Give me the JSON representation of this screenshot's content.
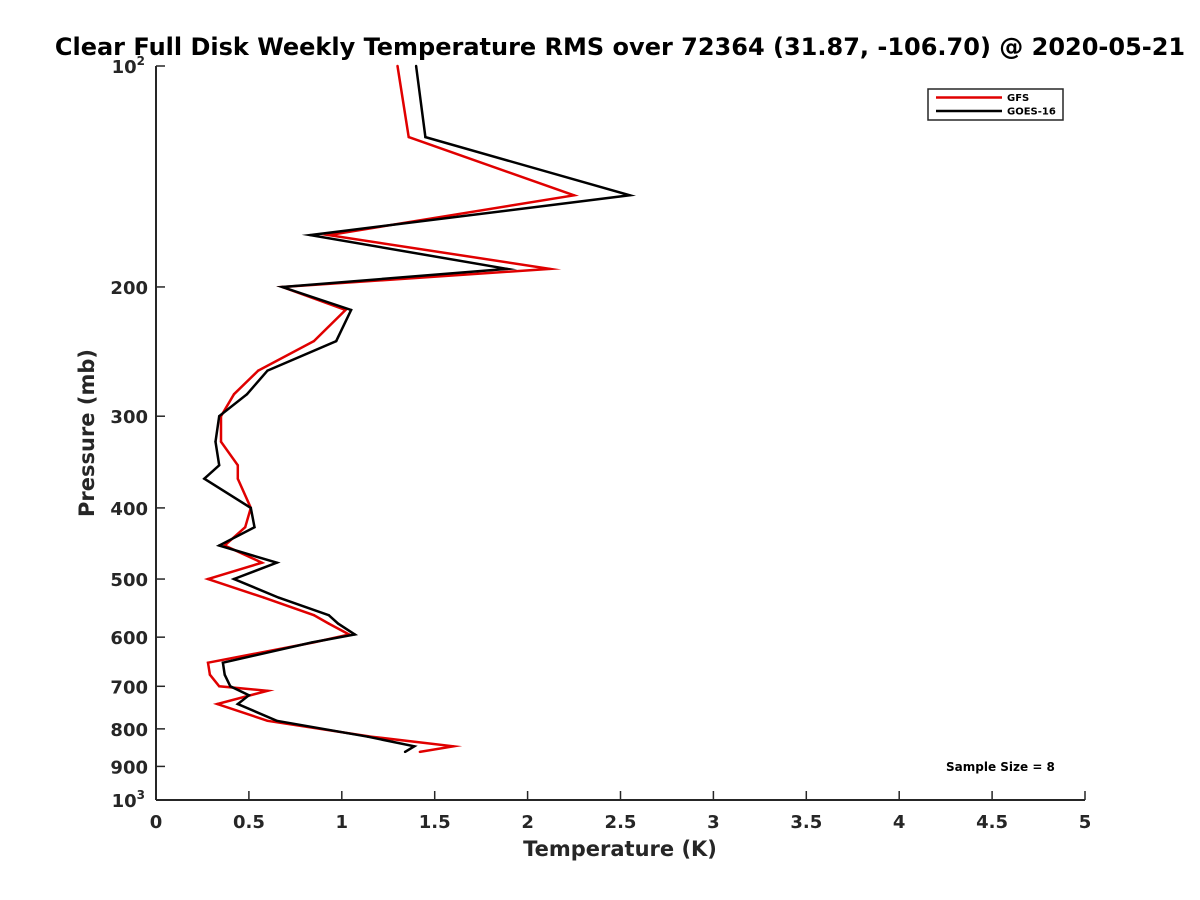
{
  "chart_data": {
    "type": "line",
    "title": "Clear Full Disk Weekly Temperature RMS over 72364 (31.87, -106.70) @ 2020-05-21",
    "xlabel": "Temperature (K)",
    "ylabel": "Pressure (mb)",
    "xlim": [
      0,
      5
    ],
    "ylim": [
      100,
      1000
    ],
    "y_scale": "log",
    "y_reversed": true,
    "grid": false,
    "legend_position": "top-right",
    "x_ticks": [
      "0",
      "0.5",
      "1",
      "1.5",
      "2",
      "2.5",
      "3",
      "3.5",
      "4",
      "4.5",
      "5"
    ],
    "y_ticks": [
      {
        "value": 100,
        "base": "10",
        "exp": "2"
      },
      {
        "value": 200,
        "base": "200",
        "exp": ""
      },
      {
        "value": 300,
        "base": "300",
        "exp": ""
      },
      {
        "value": 400,
        "base": "400",
        "exp": ""
      },
      {
        "value": 500,
        "base": "500",
        "exp": ""
      },
      {
        "value": 600,
        "base": "600",
        "exp": ""
      },
      {
        "value": 700,
        "base": "700",
        "exp": ""
      },
      {
        "value": 800,
        "base": "800",
        "exp": ""
      },
      {
        "value": 900,
        "base": "900",
        "exp": ""
      },
      {
        "value": 1000,
        "base": "10",
        "exp": "3"
      }
    ],
    "annotation": "Sample Size = 8",
    "series": [
      {
        "name": "GFS",
        "color": "#e00000",
        "points": [
          [
            1.3,
            100
          ],
          [
            1.36,
            125
          ],
          [
            2.25,
            150
          ],
          [
            0.93,
            170
          ],
          [
            2.12,
            189
          ],
          [
            0.68,
            200
          ],
          [
            1.02,
            215
          ],
          [
            0.85,
            237
          ],
          [
            0.55,
            260
          ],
          [
            0.42,
            280
          ],
          [
            0.35,
            300
          ],
          [
            0.35,
            325
          ],
          [
            0.44,
            350
          ],
          [
            0.44,
            365
          ],
          [
            0.51,
            400
          ],
          [
            0.48,
            425
          ],
          [
            0.37,
            450
          ],
          [
            0.57,
            475
          ],
          [
            0.28,
            500
          ],
          [
            0.58,
            530
          ],
          [
            0.85,
            560
          ],
          [
            0.93,
            575
          ],
          [
            1.04,
            595
          ],
          [
            0.85,
            610
          ],
          [
            0.28,
            650
          ],
          [
            0.29,
            675
          ],
          [
            0.34,
            700
          ],
          [
            0.6,
            710
          ],
          [
            0.33,
            740
          ],
          [
            0.6,
            780
          ],
          [
            1.16,
            820
          ],
          [
            1.6,
            845
          ],
          [
            1.42,
            860
          ]
        ]
      },
      {
        "name": "GOES-16",
        "color": "#000000",
        "points": [
          [
            1.4,
            100
          ],
          [
            1.45,
            125
          ],
          [
            2.55,
            150
          ],
          [
            0.83,
            170
          ],
          [
            1.89,
            189
          ],
          [
            0.68,
            200
          ],
          [
            1.05,
            215
          ],
          [
            0.97,
            237
          ],
          [
            0.6,
            260
          ],
          [
            0.49,
            280
          ],
          [
            0.34,
            300
          ],
          [
            0.32,
            325
          ],
          [
            0.34,
            350
          ],
          [
            0.26,
            365
          ],
          [
            0.51,
            400
          ],
          [
            0.53,
            425
          ],
          [
            0.34,
            450
          ],
          [
            0.65,
            475
          ],
          [
            0.42,
            500
          ],
          [
            0.66,
            530
          ],
          [
            0.93,
            560
          ],
          [
            0.98,
            575
          ],
          [
            1.07,
            595
          ],
          [
            0.84,
            610
          ],
          [
            0.36,
            650
          ],
          [
            0.37,
            675
          ],
          [
            0.4,
            700
          ],
          [
            0.5,
            720
          ],
          [
            0.44,
            740
          ],
          [
            0.65,
            780
          ],
          [
            1.14,
            820
          ],
          [
            1.39,
            845
          ],
          [
            1.34,
            860
          ]
        ]
      }
    ]
  }
}
